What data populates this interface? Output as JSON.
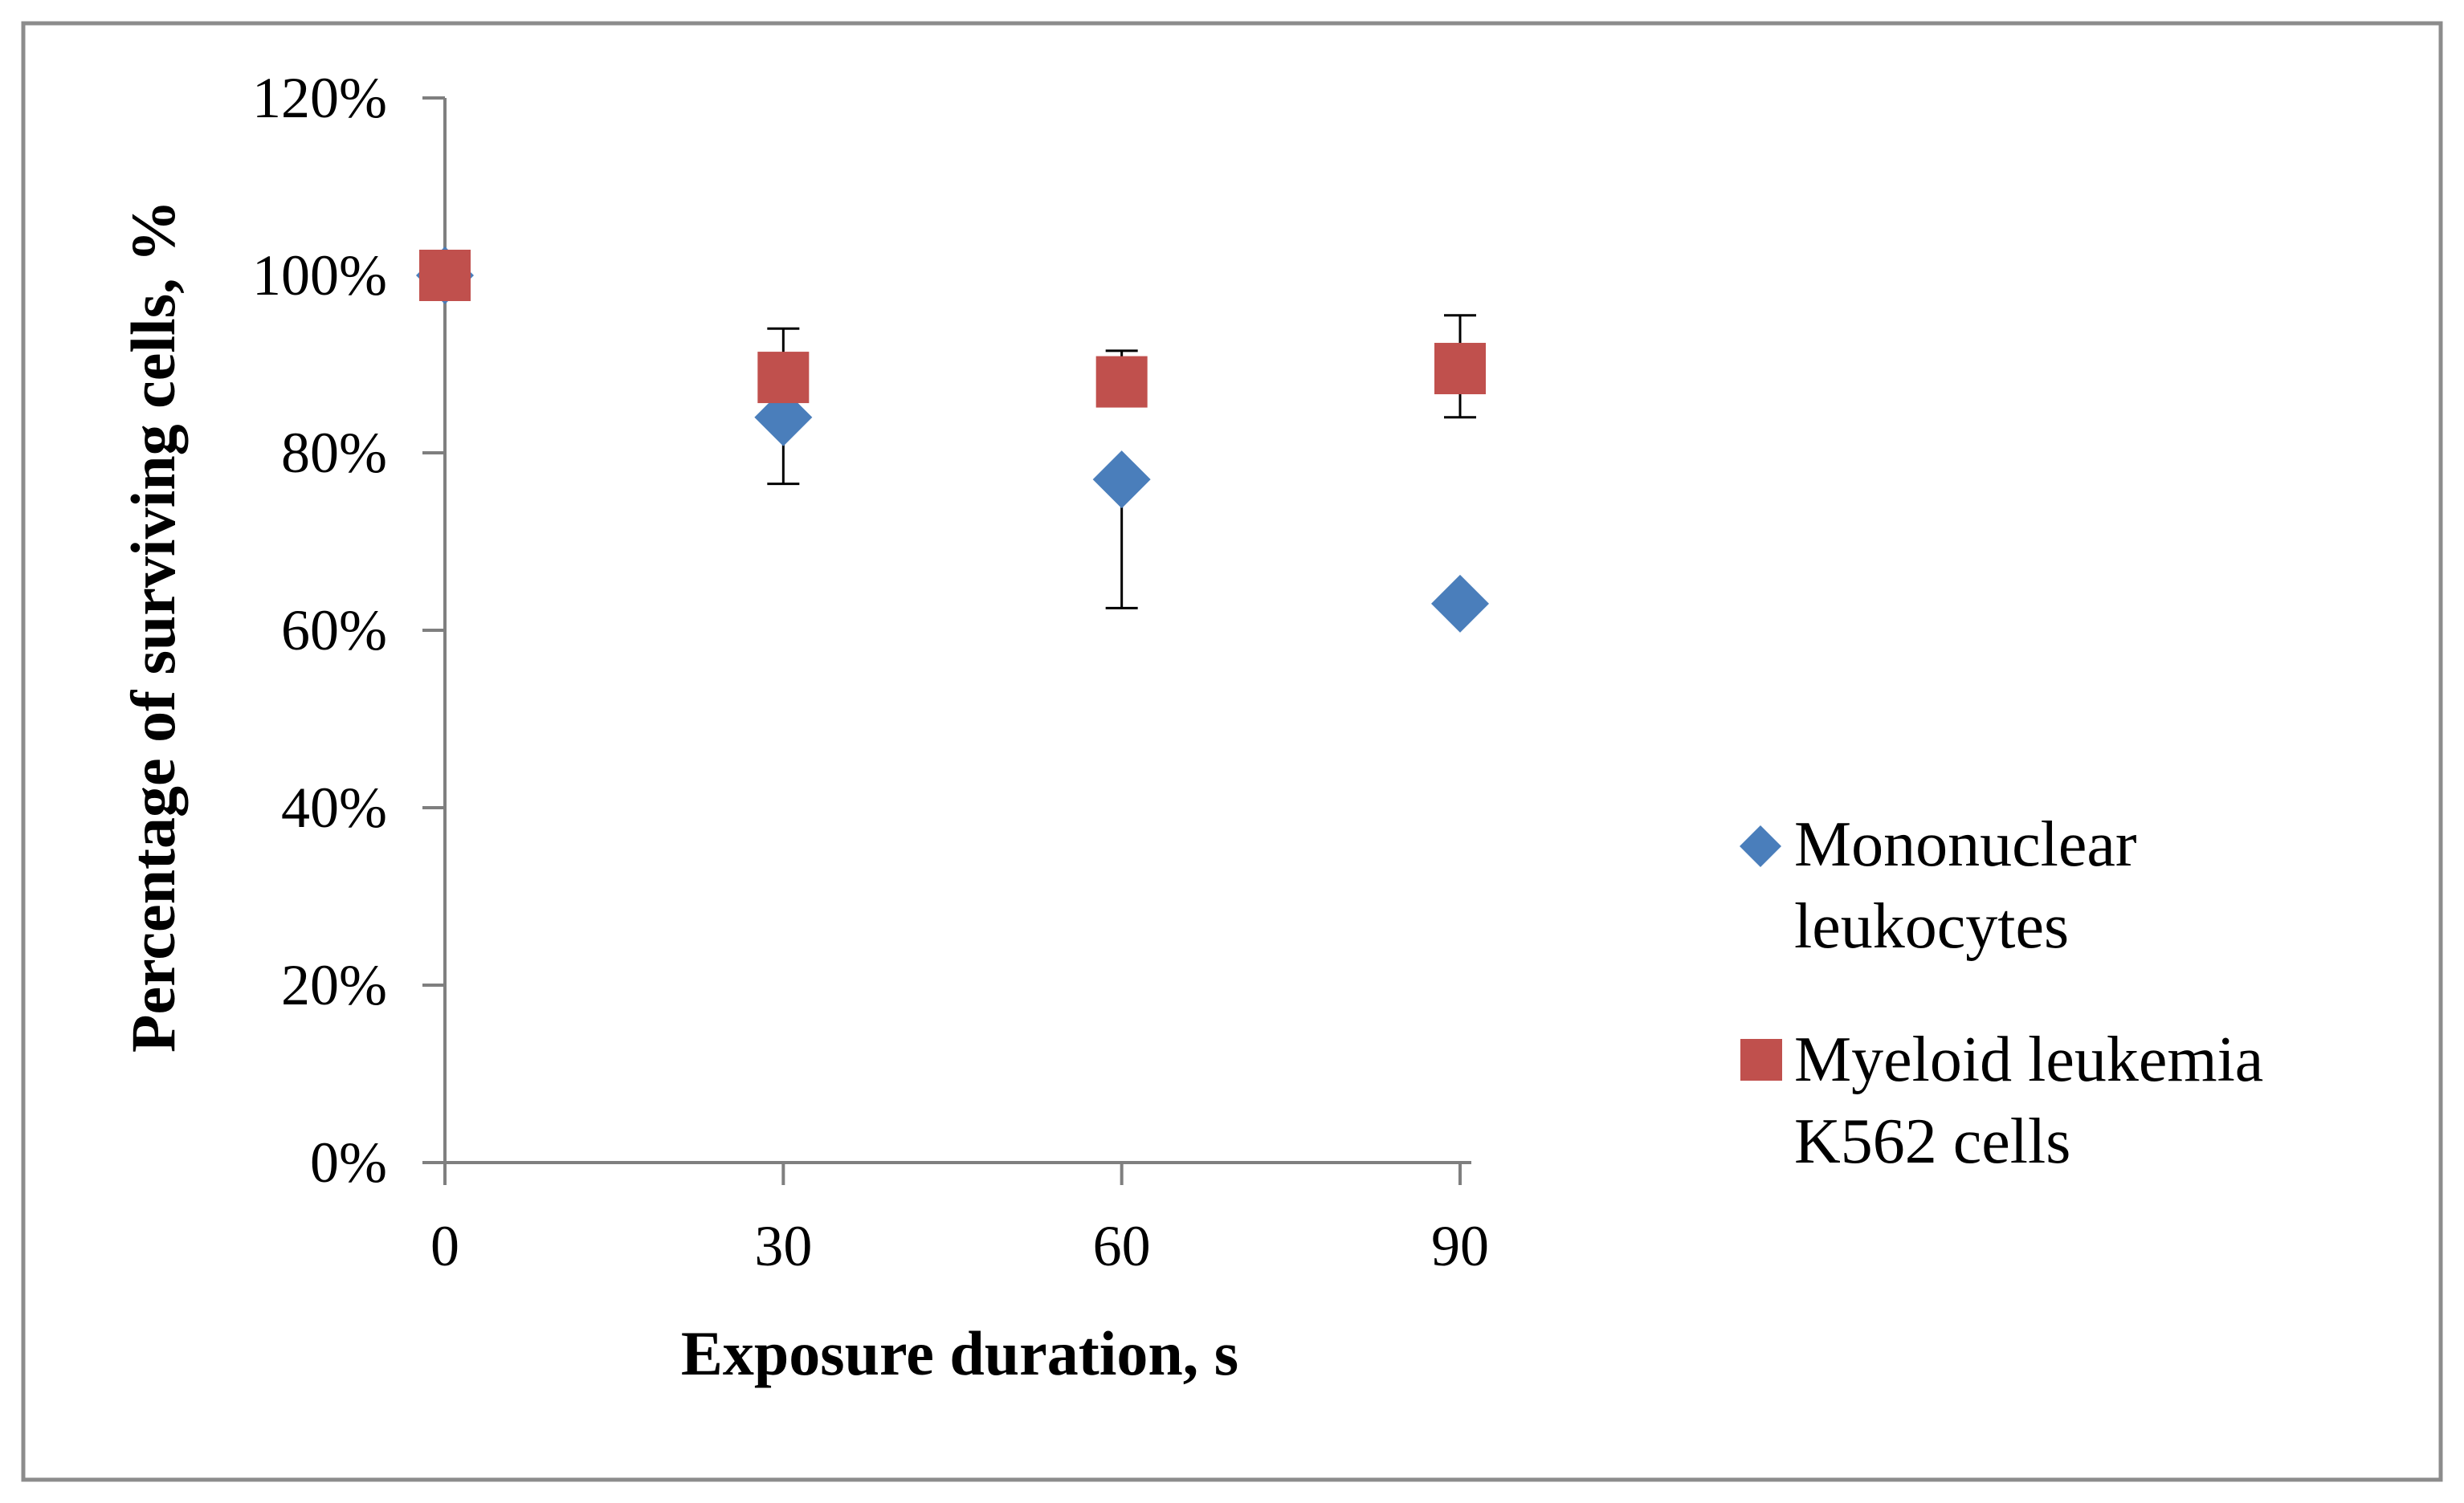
{
  "chart_data": {
    "type": "scatter",
    "title": "",
    "xlabel": "Exposure duration, s",
    "ylabel": "Percentage of surviving  cells, %",
    "x_ticks": [
      0,
      30,
      60,
      90
    ],
    "x_tick_labels": [
      "0",
      "30",
      "60",
      "90"
    ],
    "xlim": [
      0,
      90
    ],
    "y_ticks": [
      0,
      20,
      40,
      60,
      80,
      100,
      120
    ],
    "y_tick_labels": [
      "0%",
      "20%",
      "40%",
      "60%",
      "80%",
      "100%",
      "120%"
    ],
    "ylim": [
      0,
      120
    ],
    "grid": false,
    "legend_position": "right",
    "series": [
      {
        "name": "Mononuclear leukocytes",
        "legend_lines": [
          "Mononuclear",
          "leukocytes"
        ],
        "marker": "diamond",
        "color": "#4a7ebb",
        "x": [
          0,
          30,
          60,
          90
        ],
        "y": [
          100,
          84,
          77,
          63
        ],
        "error_lower": [
          0,
          7.5,
          14.5,
          0
        ],
        "error_upper": [
          0,
          0,
          0,
          0
        ]
      },
      {
        "name": "Myeloid leukemia K562 cells",
        "legend_lines": [
          "Myeloid leukemia",
          "K562  cells"
        ],
        "marker": "square",
        "color": "#c0504d",
        "x": [
          0,
          30,
          60,
          90
        ],
        "y": [
          100,
          88.5,
          88,
          89.5
        ],
        "error_lower": [
          0,
          0,
          0,
          5.5
        ],
        "error_upper": [
          0,
          5.5,
          3.5,
          6
        ]
      }
    ]
  }
}
